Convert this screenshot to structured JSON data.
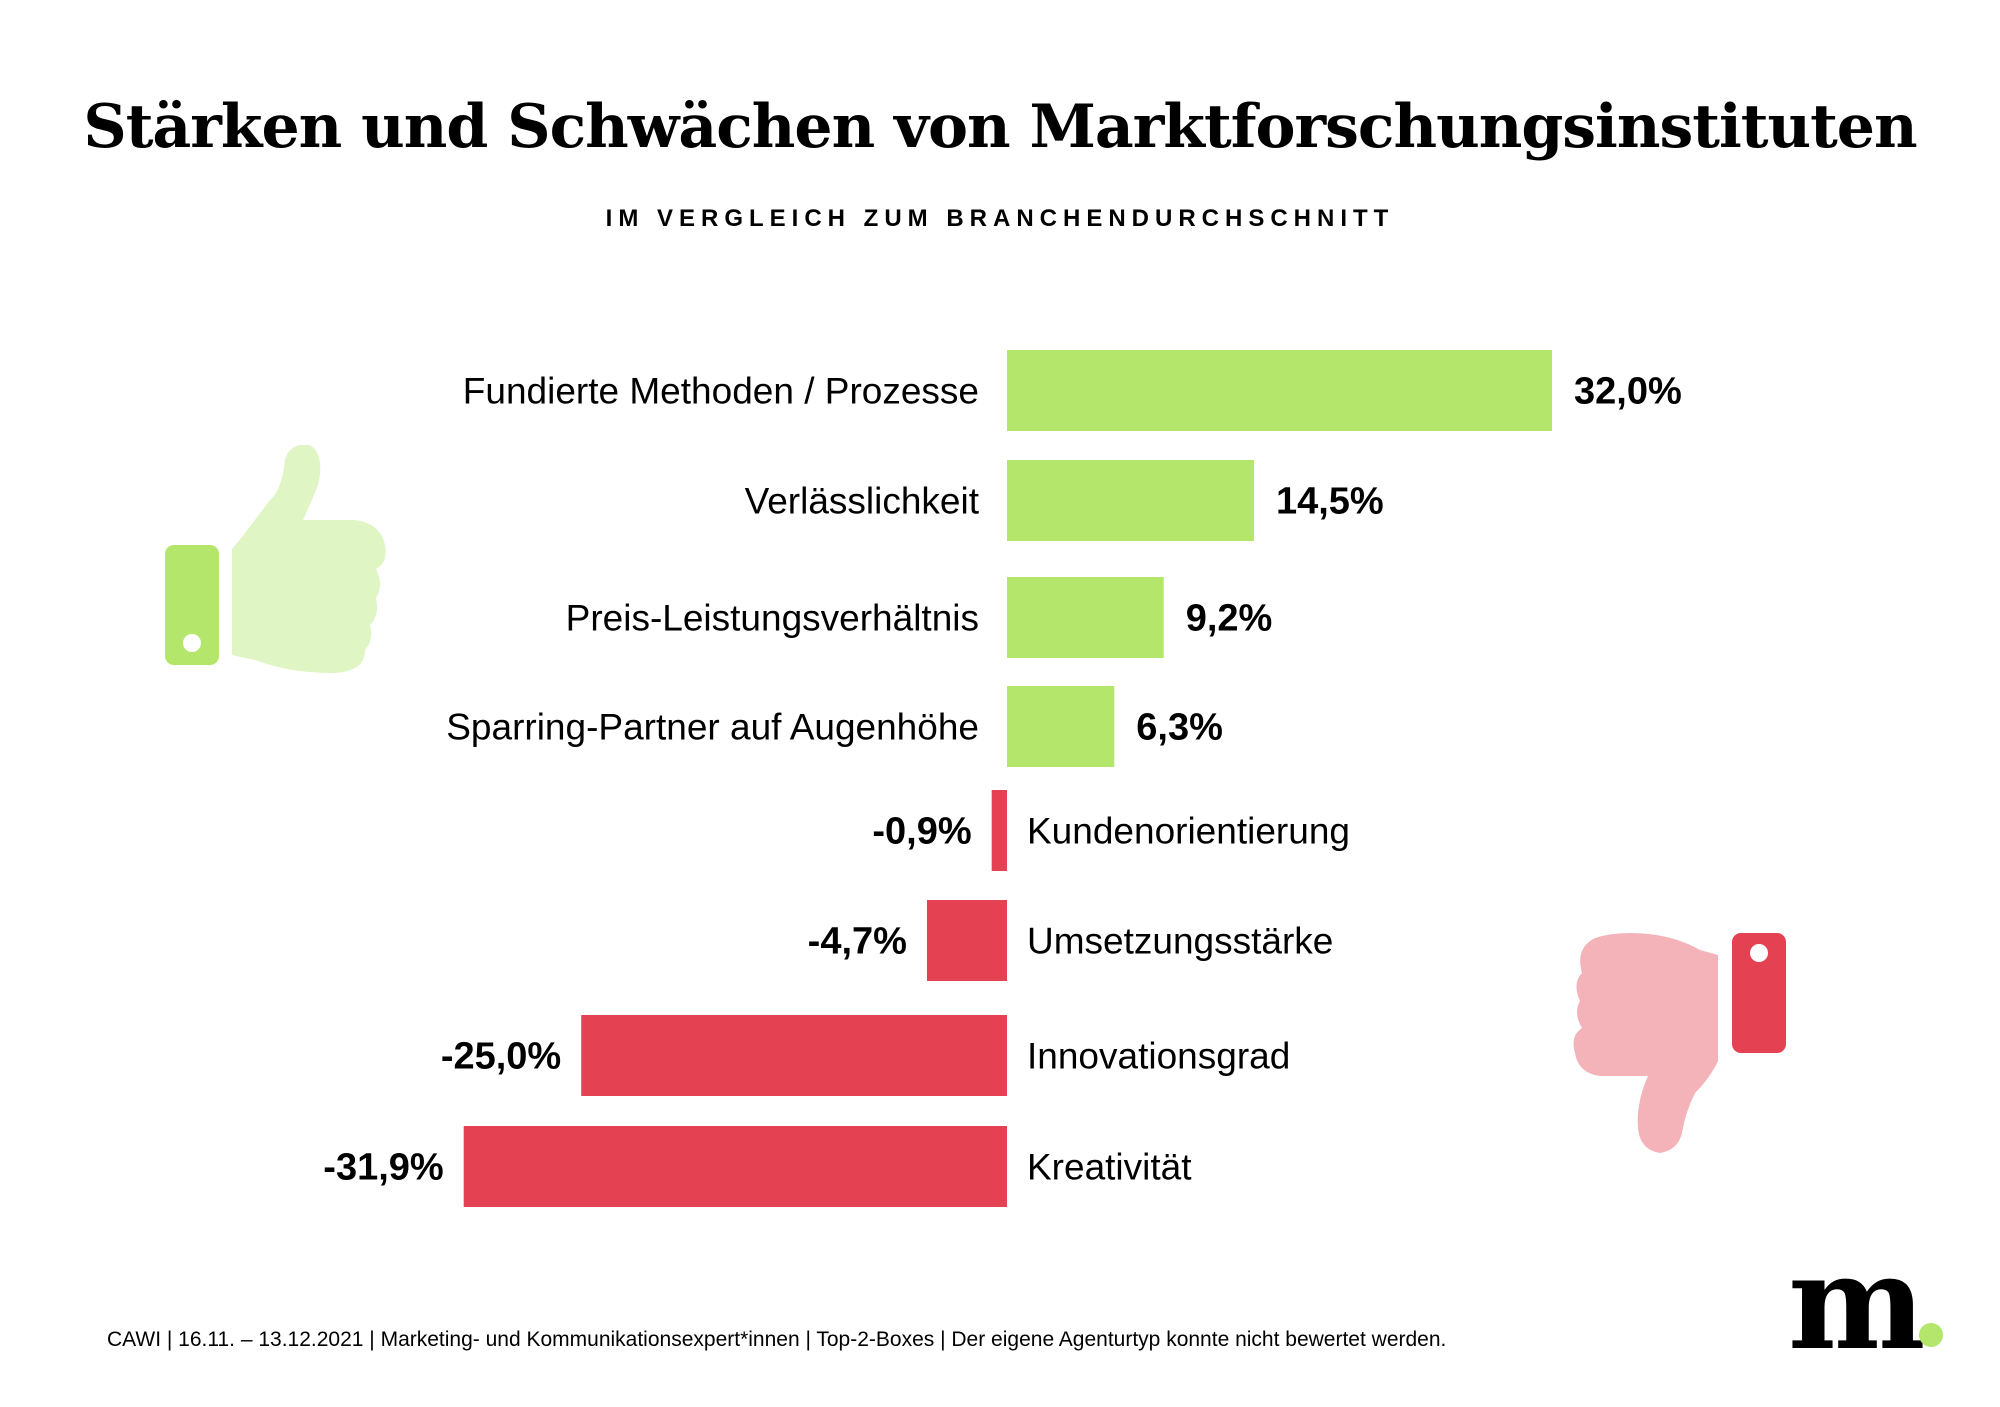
{
  "header": {
    "title": "Stärken und Schwächen von Marktforschungsinstituten",
    "subtitle": "IM VERGLEICH ZUM BRANCHENDURCHSCHNITT"
  },
  "footer": {
    "note": "CAWI | 16.11. – 13.12.2021 | Marketing- und Kommunikationsexpert*innen | Top-2-Boxes | Der eigene Agenturtyp konnte nicht bewertet werden."
  },
  "logo": {
    "letter": "m",
    "dot_color": "#b3e66a"
  },
  "icons": {
    "positive": "thumbs-up-icon",
    "negative": "thumbs-down-icon"
  },
  "colors": {
    "positive": "#b3e66a",
    "positive_light": "#dff5c4",
    "negative": "#e44153",
    "negative_light": "#f4b3b8"
  },
  "chart_data": {
    "type": "bar",
    "orientation": "horizontal",
    "title": "Stärken und Schwächen von Marktforschungsinstituten",
    "subtitle": "IM VERGLEICH ZUM BRANCHENDURCHSCHNITT",
    "xlabel": "",
    "ylabel": "",
    "unit": "%",
    "grid": false,
    "legend": "none",
    "xlim": [
      -31.9,
      32.0
    ],
    "categories": [
      "Fundierte Methoden / Prozesse",
      "Verlässlichkeit",
      "Preis-Leistungsverhältnis",
      "Sparring-Partner auf Augenhöhe",
      "Kundenorientierung",
      "Umsetzungsstärke",
      "Innovationsgrad",
      "Kreativität"
    ],
    "values": [
      32.0,
      14.5,
      9.2,
      6.3,
      -0.9,
      -4.7,
      -25.0,
      -31.9
    ],
    "value_labels": [
      "32,0%",
      "14,5%",
      "9,2%",
      "6,3%",
      "-0,9%",
      "-4,7%",
      "-25,0%",
      "-31,9%"
    ]
  }
}
